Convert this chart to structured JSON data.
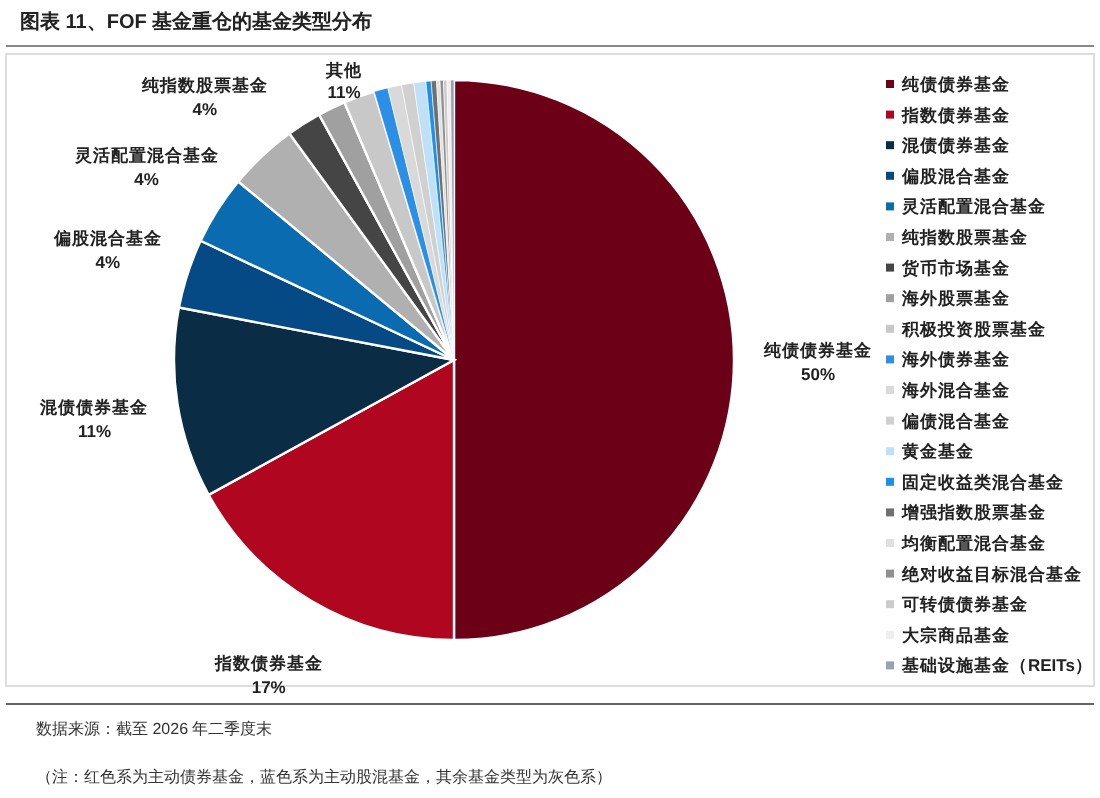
{
  "chart_data": {
    "type": "pie",
    "title": "图表 11、FOF 基金重仓的基金类型分布",
    "categories": [
      "纯债债券基金",
      "指数债券基金",
      "混债债券基金",
      "偏股混合基金",
      "灵活配置混合基金",
      "纯指数股票基金",
      "货币市场基金",
      "海外股票基金",
      "积极投资股票基金",
      "海外债券基金",
      "海外混合基金",
      "偏债混合基金",
      "黄金基金",
      "固定收益类混合基金",
      "增强指数股票基金",
      "均衡配置混合基金",
      "绝对收益目标混合基金",
      "可转债债券基金",
      "大宗商品基金",
      "基础设施基金（REITs）"
    ],
    "values": [
      50,
      17,
      11,
      4,
      4,
      4,
      2,
      1.6,
      1.8,
      0.8,
      0.8,
      0.7,
      0.7,
      0.3,
      0.3,
      0.2,
      0.2,
      0.2,
      0.2,
      0.2
    ],
    "colors": [
      "#6b0016",
      "#b0061f",
      "#0a2d45",
      "#064a85",
      "#0a6bb0",
      "#b0b0b0",
      "#454545",
      "#a0a0a0",
      "#c8c8c8",
      "#2b8fe6",
      "#d9d9d9",
      "#d0d0d0",
      "#bfe0f7",
      "#1e90e8",
      "#707070",
      "#e0e0e0",
      "#909090",
      "#cccccc",
      "#eeeeee",
      "#9aa0b0"
    ],
    "value_labels": [
      "50%",
      "17%",
      "11%",
      "4%",
      "4%",
      "4%",
      null,
      null,
      null,
      null,
      null,
      null,
      null,
      null,
      null,
      null,
      null,
      null,
      null,
      null
    ],
    "legend": "right",
    "annotations": [
      "其他\n11%",
      "数据来源：截至 2026 年二季度末",
      "（注：红色系为主动债券基金，蓝色系为主动股混基金，其余基金类型为灰色系）"
    ]
  }
}
